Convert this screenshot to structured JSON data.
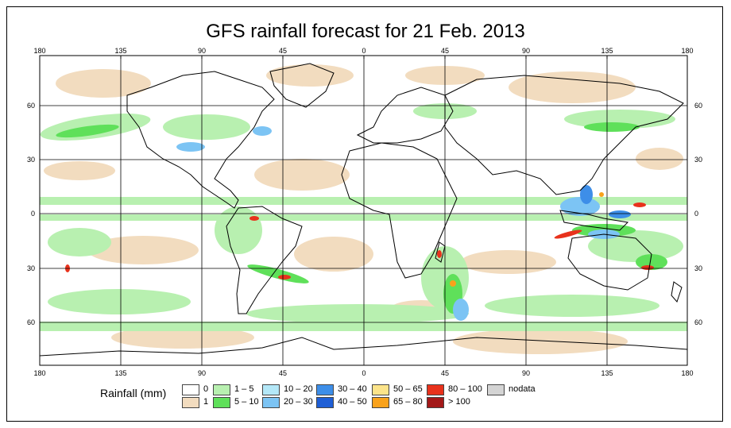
{
  "title": "GFS rainfall forecast for 21 Feb. 2013",
  "axes": {
    "lon_labels": [
      "180",
      "135",
      "90",
      "45",
      "0",
      "45",
      "90",
      "135",
      "180"
    ],
    "lat_labels": [
      "60",
      "30",
      "0",
      "30",
      "60"
    ]
  },
  "legend": {
    "title": "Rainfall (mm)",
    "items": [
      {
        "label": "0",
        "color": "#ffffff"
      },
      {
        "label": "1",
        "color": "#f2dcbf"
      },
      {
        "label": "1 – 5",
        "color": "#b8f0b0"
      },
      {
        "label": "5 – 10",
        "color": "#5fe05a"
      },
      {
        "label": "10 – 20",
        "color": "#b4e8f8"
      },
      {
        "label": "20 – 30",
        "color": "#7cc4f4"
      },
      {
        "label": "30 – 40",
        "color": "#3d8ee8"
      },
      {
        "label": "40 – 50",
        "color": "#1f5fd6"
      },
      {
        "label": "50 – 65",
        "color": "#fce48a"
      },
      {
        "label": "65 – 80",
        "color": "#f9a21b"
      },
      {
        "label": "80 – 100",
        "color": "#e8321c"
      },
      {
        "label": "> 100",
        "color": "#a31818"
      },
      {
        "label": "nodata",
        "color": "#d4d4d4"
      }
    ]
  },
  "colors": {
    "frame": "#000000",
    "grid": "#000000",
    "coastline": "#000000"
  }
}
